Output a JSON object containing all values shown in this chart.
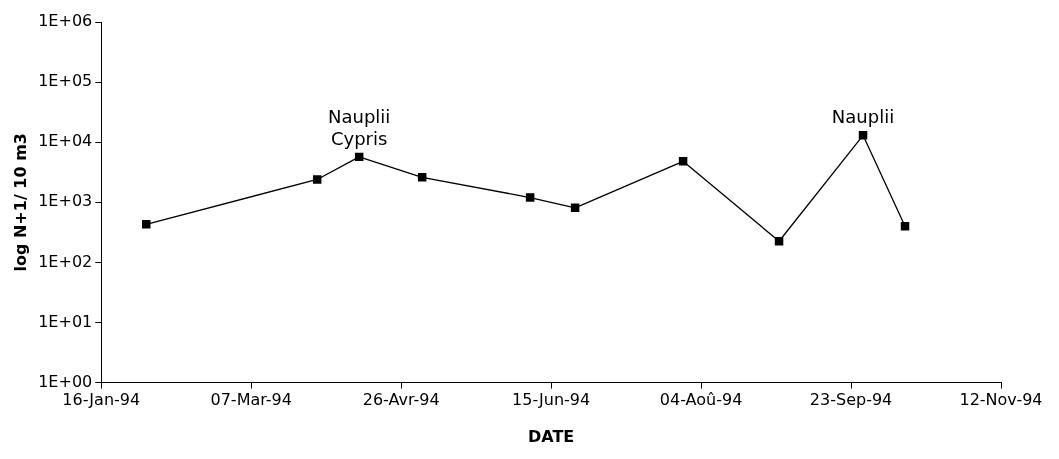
{
  "chart_data": {
    "type": "line",
    "xlabel": "DATE",
    "ylabel": "log N+1/ 10 m3",
    "x": [
      "1994-01-31",
      "1994-03-29",
      "1994-04-12",
      "1994-05-03",
      "1994-06-08",
      "1994-06-23",
      "1994-07-29",
      "1994-08-30",
      "1994-09-27",
      "1994-10-11"
    ],
    "series": [
      {
        "color": "#000000",
        "values": [
          430,
          2400,
          5700,
          2600,
          1200,
          810,
          4800,
          225,
          13000,
          400
        ]
      }
    ],
    "log": "y",
    "xlim": [
      "1994-01-16",
      "1994-11-12"
    ],
    "xticks": [
      {
        "value": "1994-01-16",
        "label": "16-Jan-94"
      },
      {
        "value": "1994-03-07",
        "label": "07-Mar-94"
      },
      {
        "value": "1994-04-26",
        "label": "26-Avr-94"
      },
      {
        "value": "1994-06-15",
        "label": "15-Jun-94"
      },
      {
        "value": "1994-08-04",
        "label": "04-Aoû-94"
      },
      {
        "value": "1994-09-23",
        "label": "23-Sep-94"
      },
      {
        "value": "1994-11-12",
        "label": "12-Nov-94"
      }
    ],
    "ylim": [
      1,
      1000000
    ],
    "yticks": [
      {
        "value": 1,
        "label": "1E+00"
      },
      {
        "value": 10,
        "label": "1E+01"
      },
      {
        "value": 100,
        "label": "1E+02"
      },
      {
        "value": 1000,
        "label": "1E+03"
      },
      {
        "value": 10000,
        "label": "1E+04"
      },
      {
        "value": 100000,
        "label": "1E+05"
      },
      {
        "value": 1000000,
        "label": "1E+06"
      }
    ],
    "grid": false,
    "legend": false,
    "marker": "square",
    "line_style": "solid",
    "annotations": [
      {
        "text": "Cypris",
        "x": "1994-04-12",
        "y": 5700
      },
      {
        "text": "Nauplii",
        "x": "1994-04-12",
        "y": 5700
      },
      {
        "text": "Nauplii",
        "x": "1994-09-27",
        "y": 13000
      }
    ]
  }
}
